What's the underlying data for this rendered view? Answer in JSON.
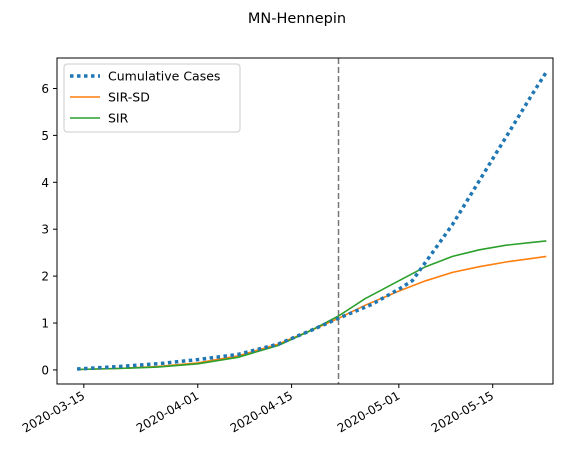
{
  "chart_data": {
    "type": "line",
    "title": "MN-Hennepin",
    "xlabel": "",
    "ylabel": "",
    "x_ticks": [
      "2020-03-15",
      "2020-04-01",
      "2020-04-15",
      "2020-05-01",
      "2020-05-15"
    ],
    "y_ticks": [
      0,
      1,
      2,
      3,
      4,
      5,
      6
    ],
    "xlim": [
      "2020-03-11",
      "2020-05-24"
    ],
    "ylim": [
      -0.3,
      6.65
    ],
    "vertical_line": {
      "x": "2020-04-22",
      "style": "dashed",
      "color": "#777777"
    },
    "grid": false,
    "legend_position": "upper left",
    "series": [
      {
        "name": "Cumulative Cases",
        "style": "dotted",
        "color": "#1f77b4",
        "x": [
          "2020-03-14",
          "2020-03-20",
          "2020-03-26",
          "2020-04-01",
          "2020-04-07",
          "2020-04-13",
          "2020-04-18",
          "2020-04-22",
          "2020-04-27",
          "2020-05-01",
          "2020-05-03",
          "2020-05-06",
          "2020-05-09",
          "2020-05-12",
          "2020-05-15",
          "2020-05-18",
          "2020-05-21",
          "2020-05-23"
        ],
        "values": [
          0.02,
          0.07,
          0.13,
          0.22,
          0.33,
          0.55,
          0.85,
          1.1,
          1.4,
          1.72,
          1.9,
          2.5,
          3.1,
          3.8,
          4.5,
          5.2,
          5.9,
          6.35
        ]
      },
      {
        "name": "SIR-SD",
        "style": "solid",
        "color": "#ff7f0e",
        "x": [
          "2020-03-14",
          "2020-03-20",
          "2020-03-26",
          "2020-04-01",
          "2020-04-07",
          "2020-04-13",
          "2020-04-18",
          "2020-04-22",
          "2020-04-26",
          "2020-05-01",
          "2020-05-05",
          "2020-05-09",
          "2020-05-13",
          "2020-05-17",
          "2020-05-21",
          "2020-05-23"
        ],
        "values": [
          0.01,
          0.03,
          0.07,
          0.15,
          0.3,
          0.55,
          0.85,
          1.1,
          1.38,
          1.68,
          1.9,
          2.08,
          2.2,
          2.3,
          2.38,
          2.42
        ]
      },
      {
        "name": "SIR",
        "style": "solid",
        "color": "#2ca02c",
        "x": [
          "2020-03-14",
          "2020-03-20",
          "2020-03-26",
          "2020-04-01",
          "2020-04-07",
          "2020-04-13",
          "2020-04-18",
          "2020-04-22",
          "2020-04-26",
          "2020-05-01",
          "2020-05-05",
          "2020-05-09",
          "2020-05-13",
          "2020-05-17",
          "2020-05-21",
          "2020-05-23"
        ],
        "values": [
          0.01,
          0.03,
          0.06,
          0.13,
          0.27,
          0.52,
          0.85,
          1.15,
          1.52,
          1.9,
          2.2,
          2.42,
          2.56,
          2.66,
          2.72,
          2.75
        ]
      }
    ]
  }
}
